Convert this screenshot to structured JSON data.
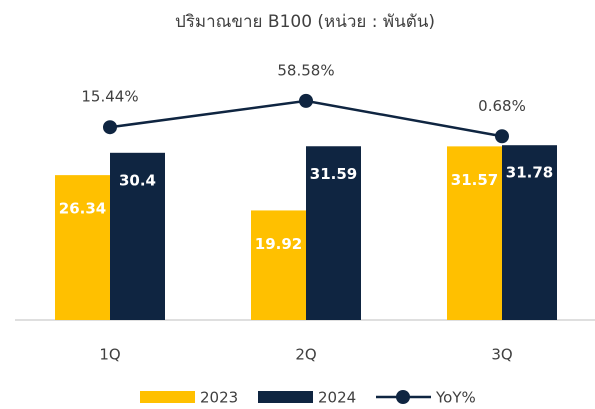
{
  "chart_data": {
    "type": "bar_line",
    "title": "ปริมาณขาย B100 (หน่วย : พันตัน)",
    "categories": [
      "1Q",
      "2Q",
      "3Q"
    ],
    "series": [
      {
        "name": "2023",
        "color": "#FFC000",
        "values": [
          26.34,
          19.92,
          31.57
        ]
      },
      {
        "name": "2024",
        "color": "#0F2541",
        "values": [
          30.4,
          31.59,
          31.78
        ]
      },
      {
        "name": "YoY%",
        "color": "#0F2541",
        "axis": "y2",
        "type": "line",
        "values": [
          15.44,
          58.58,
          0.68
        ],
        "value_labels": [
          "15.44%",
          "58.58%",
          "0.68%"
        ]
      }
    ],
    "ylim": [
      0,
      40
    ],
    "y2lim": [
      -300,
      60
    ],
    "grid": false
  }
}
